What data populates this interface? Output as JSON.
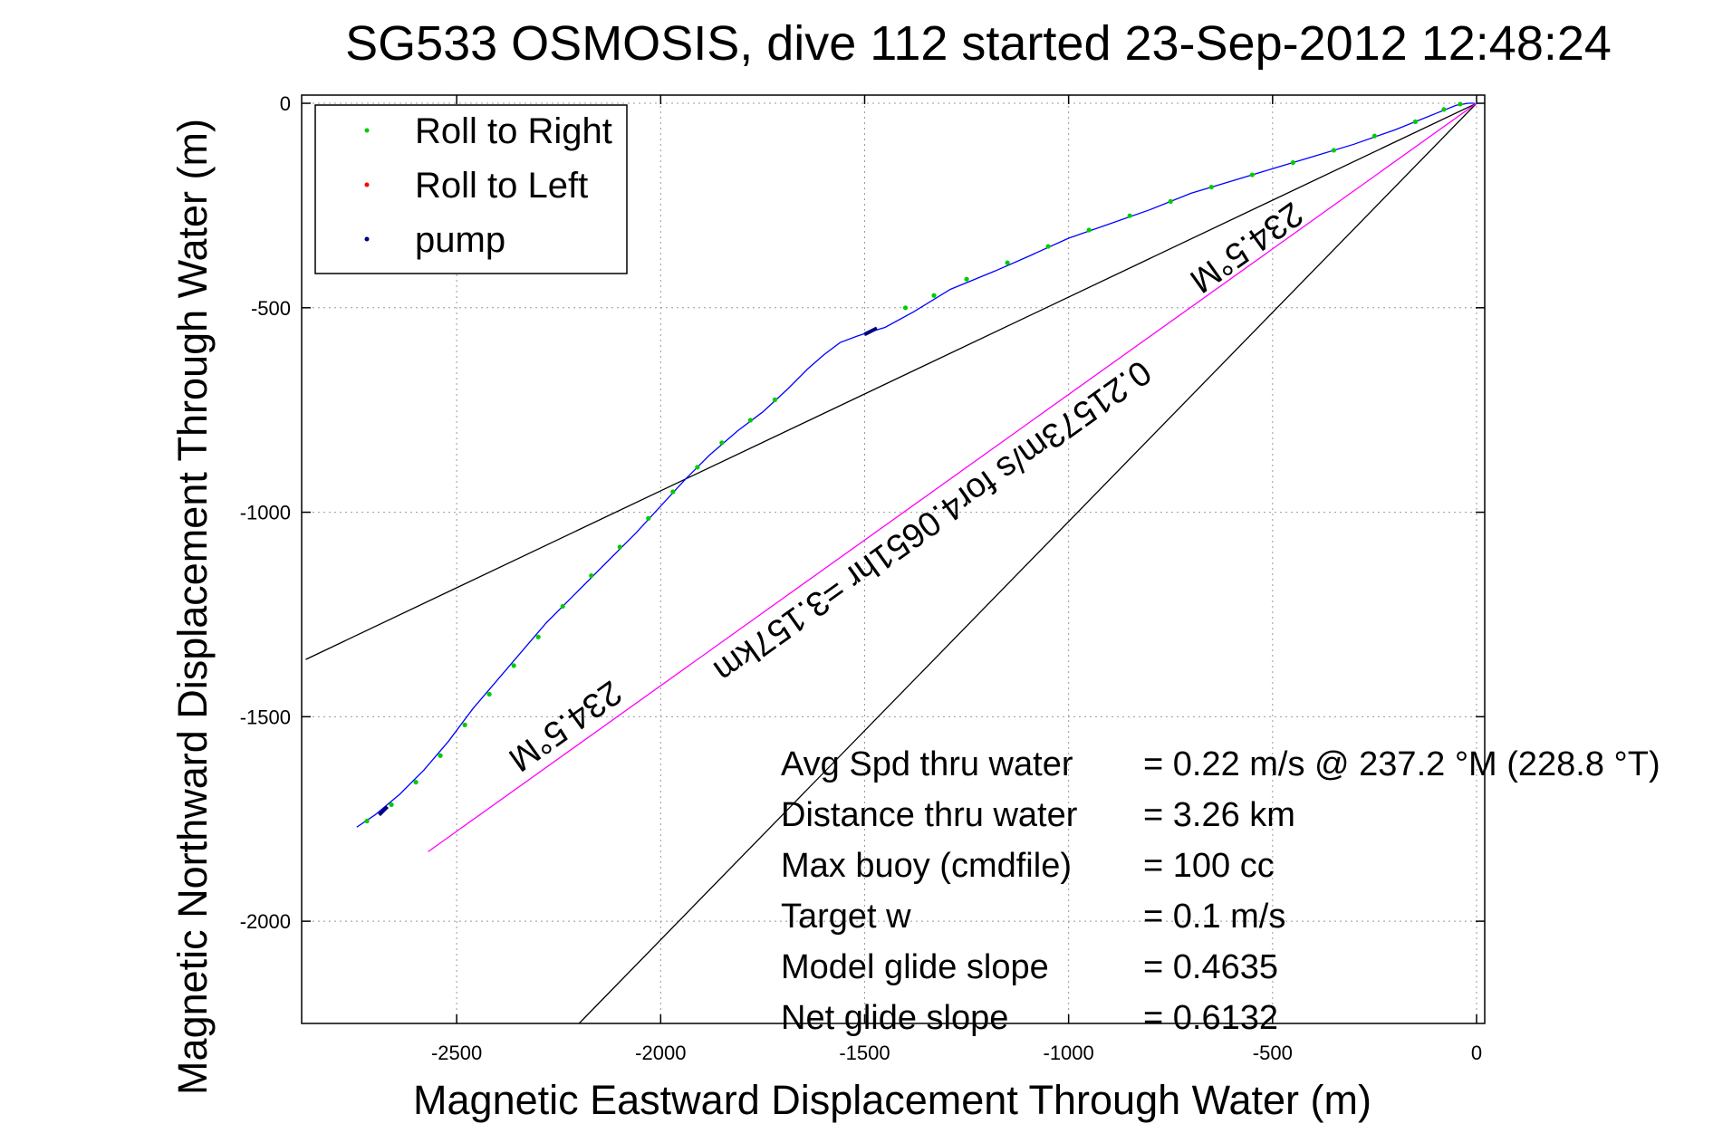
{
  "chart_data": {
    "type": "scatter",
    "title": "SG533 OSMOSIS, dive 112 started 23-Sep-2012 12:48:24",
    "xlabel": "Magnetic Eastward Displacement Through Water (m)",
    "ylabel": "Magnetic Northward Displacement Through Water (m)",
    "xlim": [
      -2880,
      20
    ],
    "ylim": [
      -2250,
      20
    ],
    "xticks": [
      -2500,
      -2000,
      -1500,
      -1000,
      -500,
      0
    ],
    "yticks": [
      0,
      -500,
      -1000,
      -1500,
      -2000
    ],
    "grid": true,
    "legend_position": "top-left",
    "legend": [
      {
        "label": "Roll to Right",
        "color": "#00cc00"
      },
      {
        "label": "Roll to Left",
        "color": "#ff0000"
      },
      {
        "label": "pump",
        "color": "#000080"
      }
    ],
    "track": {
      "color": "#0000ff",
      "x": [
        -2745,
        -2700,
        -2640,
        -2580,
        -2520,
        -2460,
        -2400,
        -2340,
        -2280,
        -2200,
        -2130,
        -2060,
        -2000,
        -1940,
        -1880,
        -1810,
        -1750,
        -1690,
        -1640,
        -1600,
        -1560,
        -1520,
        -1490,
        -1450,
        -1380,
        -1290,
        -1180,
        -1100,
        -1000,
        -900,
        -800,
        -700,
        -600,
        -500,
        -400,
        -300,
        -200,
        -100,
        -50,
        -20,
        -5
      ],
      "y": [
        -1770,
        -1740,
        -1690,
        -1630,
        -1560,
        -1480,
        -1410,
        -1340,
        -1270,
        -1190,
        -1120,
        -1050,
        -985,
        -920,
        -860,
        -800,
        -755,
        -700,
        -650,
        -615,
        -585,
        -570,
        -560,
        -548,
        -510,
        -455,
        -410,
        -375,
        -330,
        -295,
        -260,
        -220,
        -190,
        -160,
        -130,
        -100,
        -65,
        -25,
        -5,
        0,
        0
      ]
    },
    "roll_right_points": {
      "color": "#00cc00",
      "x": [
        -2720,
        -2660,
        -2600,
        -2540,
        -2480,
        -2420,
        -2360,
        -2300,
        -2240,
        -2170,
        -2100,
        -2030,
        -1970,
        -1910,
        -1850,
        -1780,
        -1720,
        -1400,
        -1330,
        -1250,
        -1150,
        -1050,
        -950,
        -850,
        -750,
        -650,
        -550,
        -450,
        -350,
        -250,
        -150,
        -80,
        -40
      ],
      "y": [
        -1755,
        -1715,
        -1660,
        -1595,
        -1520,
        -1445,
        -1375,
        -1305,
        -1230,
        -1155,
        -1085,
        -1015,
        -950,
        -890,
        -830,
        -775,
        -725,
        -500,
        -470,
        -430,
        -390,
        -350,
        -310,
        -275,
        -240,
        -205,
        -175,
        -145,
        -115,
        -80,
        -45,
        -15,
        -2
      ]
    },
    "roll_left_points": {
      "color": "#ff0000",
      "x": [],
      "y": []
    },
    "pump_segments": {
      "color": "#000080",
      "x": [
        -2690,
        -2670,
        -1500,
        -1470
      ],
      "y": [
        -1740,
        -1720,
        -565,
        -550
      ]
    },
    "lines": [
      {
        "name": "heading-line-shallow",
        "color": "#000000",
        "x": [
          0,
          -2870
        ],
        "y": [
          0,
          -1360
        ]
      },
      {
        "name": "heading-line-steep",
        "color": "#000000",
        "x": [
          0,
          -2200
        ],
        "y": [
          0,
          -2250
        ]
      },
      {
        "name": "net-displacement-line",
        "color": "#ff00ff",
        "x": [
          0,
          -2570
        ],
        "y": [
          0,
          -1830
        ]
      }
    ],
    "annotations": [
      {
        "text": "234.5°M",
        "x": -2250,
        "y": -1500
      },
      {
        "text": "234.5°M",
        "x": -580,
        "y": -330
      },
      {
        "text": "0.21573m/s for4.0651hr =3.157km",
        "x": -1350,
        "y": -1000
      }
    ],
    "stats": [
      {
        "label": "Avg Spd thru water",
        "value": "=  0.22 m/s @ 237.2  °M (228.8  °T)"
      },
      {
        "label": "Distance thru water",
        "value": "=  3.26 km"
      },
      {
        "label": "Max buoy (cmdfile)",
        "value": "= 100 cc"
      },
      {
        "label": "Target w",
        "value": "= 0.1 m/s"
      },
      {
        "label": "Model glide slope",
        "value": "= 0.4635"
      },
      {
        "label": "Net glide slope",
        "value": "= 0.6132"
      }
    ]
  }
}
